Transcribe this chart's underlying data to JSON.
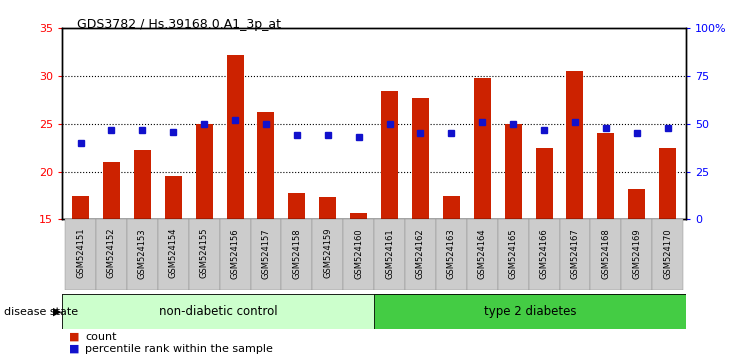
{
  "title": "GDS3782 / Hs.39168.0.A1_3p_at",
  "samples": [
    "GSM524151",
    "GSM524152",
    "GSM524153",
    "GSM524154",
    "GSM524155",
    "GSM524156",
    "GSM524157",
    "GSM524158",
    "GSM524159",
    "GSM524160",
    "GSM524161",
    "GSM524162",
    "GSM524163",
    "GSM524164",
    "GSM524165",
    "GSM524166",
    "GSM524167",
    "GSM524168",
    "GSM524169",
    "GSM524170"
  ],
  "counts": [
    17.5,
    21.0,
    22.3,
    19.5,
    25.0,
    32.2,
    26.2,
    17.8,
    17.3,
    15.7,
    28.4,
    27.7,
    17.5,
    29.8,
    25.0,
    22.5,
    30.5,
    24.0,
    18.2,
    22.5
  ],
  "percentiles": [
    40,
    47,
    47,
    46,
    50,
    52,
    50,
    44,
    44,
    43,
    50,
    45,
    45,
    51,
    50,
    47,
    51,
    48,
    45,
    48
  ],
  "ylim_left": [
    15,
    35
  ],
  "ylim_right": [
    0,
    100
  ],
  "yticks_left": [
    15,
    20,
    25,
    30,
    35
  ],
  "yticks_right": [
    0,
    25,
    50,
    75,
    100
  ],
  "bar_color": "#cc2200",
  "dot_color": "#1111cc",
  "grid_color": "#000000",
  "bar_width": 0.55,
  "non_diabetic_count": 10,
  "type2_count": 10,
  "group1_label": "non-diabetic control",
  "group2_label": "type 2 diabetes",
  "group1_color": "#ccffcc",
  "group2_color": "#44cc44",
  "label_count": "count",
  "label_percentile": "percentile rank within the sample",
  "disease_state_label": "disease state",
  "plot_bg": "#ffffff",
  "xtick_bg": "#cccccc",
  "spine_color": "#000000"
}
